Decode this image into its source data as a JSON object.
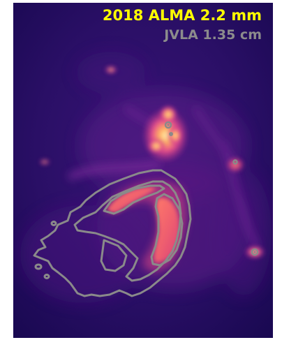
{
  "figure": {
    "primary_label": "2018 ALMA 2.2 mm",
    "secondary_label": "JVLA 1.35 cm",
    "colors": {
      "primary_label": "#ffff00",
      "secondary_label": "#8c8c8c",
      "contour": "#8a8a8a",
      "colormap": "magma"
    }
  }
}
